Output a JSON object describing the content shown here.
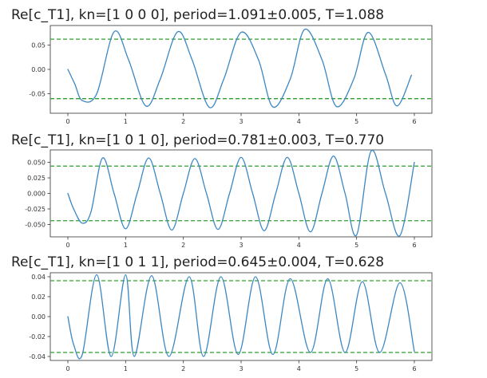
{
  "chart_data": [
    {
      "type": "line",
      "title": "Re[c_T1], kn=[1 0 0 0], period=1.091±0.005, T=1.088",
      "xlim": [
        0,
        6
      ],
      "ylim": [
        -0.09,
        0.09
      ],
      "x_ticks": [
        "0",
        "1",
        "2",
        "3",
        "4",
        "5",
        "6"
      ],
      "y_ticks": [
        "0.05",
        "0.00",
        "-0.05"
      ],
      "y_tick_values": [
        0.05,
        0.0,
        -0.05
      ],
      "reference_lines": [
        0.062,
        -0.06
      ],
      "reference_line_style": "dashed",
      "series": [
        {
          "x": [
            0.0,
            0.12,
            0.25,
            0.5,
            0.8,
            1.05,
            1.35,
            1.6,
            1.9,
            2.15,
            2.45,
            2.7,
            3.0,
            3.3,
            3.55,
            3.85,
            4.1,
            4.4,
            4.65,
            4.95,
            5.2,
            5.5,
            5.7,
            5.95
          ],
          "y": [
            0.0,
            -0.03,
            -0.064,
            -0.05,
            0.077,
            0.02,
            -0.075,
            -0.02,
            0.077,
            0.02,
            -0.078,
            -0.02,
            0.076,
            0.02,
            -0.077,
            -0.02,
            0.082,
            0.02,
            -0.076,
            -0.02,
            0.076,
            -0.01,
            -0.075,
            -0.012
          ]
        }
      ]
    },
    {
      "type": "line",
      "title": "Re[c_T1], kn=[1 0 1 0], period=0.781±0.003, T=0.770",
      "xlim": [
        0,
        6
      ],
      "ylim": [
        -0.07,
        0.07
      ],
      "x_ticks": [
        "0",
        "1",
        "2",
        "3",
        "4",
        "5",
        "6"
      ],
      "y_ticks": [
        "0.050",
        "0.025",
        "0.000",
        "-0.025",
        "-0.050"
      ],
      "y_tick_values": [
        0.05,
        0.025,
        0.0,
        -0.025,
        -0.05
      ],
      "reference_lines": [
        0.044,
        -0.044
      ],
      "reference_line_style": "dashed",
      "series": [
        {
          "x": [
            0.0,
            0.1,
            0.25,
            0.4,
            0.6,
            0.8,
            1.0,
            1.2,
            1.4,
            1.6,
            1.8,
            2.0,
            2.2,
            2.4,
            2.6,
            2.8,
            3.0,
            3.2,
            3.4,
            3.6,
            3.8,
            4.0,
            4.2,
            4.4,
            4.6,
            4.8,
            5.0,
            5.25,
            5.5,
            5.75,
            6.0
          ],
          "y": [
            0.0,
            -0.025,
            -0.048,
            -0.03,
            0.057,
            0.0,
            -0.057,
            0.0,
            0.057,
            0.0,
            -0.059,
            0.0,
            0.056,
            0.0,
            -0.058,
            0.0,
            0.058,
            0.0,
            -0.06,
            0.0,
            0.058,
            0.0,
            -0.062,
            0.0,
            0.06,
            0.0,
            -0.067,
            0.068,
            0.0,
            -0.068,
            0.05
          ]
        }
      ]
    },
    {
      "type": "line",
      "title": "Re[c_T1], kn=[1 0 1 1], period=0.645±0.004, T=0.628",
      "xlim": [
        0,
        6
      ],
      "ylim": [
        -0.044,
        0.044
      ],
      "x_ticks": [
        "0",
        "1",
        "2",
        "3",
        "4",
        "5",
        "6"
      ],
      "y_ticks": [
        "0.04",
        "0.02",
        "0.00",
        "-0.02",
        "-0.04"
      ],
      "y_tick_values": [
        0.04,
        0.02,
        0.0,
        -0.02,
        -0.04
      ],
      "reference_lines": [
        0.036,
        -0.036
      ],
      "reference_line_style": "dashed",
      "series": [
        {
          "x": [
            0.0,
            0.1,
            0.25,
            0.5,
            0.75,
            1.0,
            1.15,
            1.45,
            1.75,
            2.1,
            2.35,
            2.65,
            2.95,
            3.25,
            3.55,
            3.85,
            4.2,
            4.5,
            4.8,
            5.1,
            5.4,
            5.75,
            6.0
          ],
          "y": [
            0.0,
            -0.028,
            -0.038,
            0.042,
            -0.04,
            0.042,
            -0.04,
            0.041,
            -0.04,
            0.04,
            -0.04,
            0.04,
            -0.038,
            0.04,
            -0.038,
            0.038,
            -0.036,
            0.038,
            -0.036,
            0.035,
            -0.036,
            0.034,
            -0.035
          ]
        }
      ]
    }
  ],
  "colors": {
    "line": "#3b87c3",
    "reference": "#2ca02c",
    "axes": "#333333",
    "text": "#222222"
  }
}
